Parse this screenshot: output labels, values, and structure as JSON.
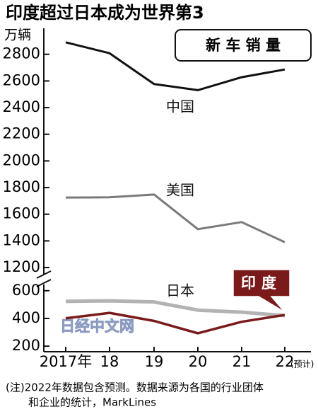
{
  "chart_data": [
    {
      "type": "line",
      "title": "印度超过日本成为世界第3",
      "y_unit": "万辆",
      "panel_label": "新 车 销 量",
      "ylim": [
        1110,
        2995
      ],
      "yticks": [
        1200,
        1400,
        1600,
        1800,
        2000,
        2200,
        2400,
        2600,
        2800
      ],
      "series": [
        {
          "name": "中国",
          "color": "#111111",
          "values": [
            2890,
            2808,
            2577,
            2531,
            2628,
            2686
          ]
        },
        {
          "name": "美国",
          "color": "#7a7a7a",
          "values": [
            1725,
            1727,
            1748,
            1488,
            1541,
            1390
          ]
        }
      ]
    },
    {
      "type": "line",
      "categories": [
        "2017年",
        "18",
        "19",
        "20",
        "21",
        "22"
      ],
      "x_note": "(预计)",
      "ylim": [
        160,
        655
      ],
      "yticks": [
        200,
        400,
        600
      ],
      "watermark": "日经中文网",
      "footnote": [
        "(注)2022年数据包含预测。数据来源为各国的行业团体",
        "和企业的统计，MarkLines"
      ],
      "series": [
        {
          "name": "日本",
          "color": "#b3b3b3",
          "values": [
            523,
            527,
            519,
            460,
            445,
            420
          ]
        },
        {
          "name": "印度",
          "color": "#7a1a1a",
          "values": [
            401,
            440,
            382,
            293,
            376,
            425
          ],
          "label_style": "box"
        }
      ]
    }
  ]
}
